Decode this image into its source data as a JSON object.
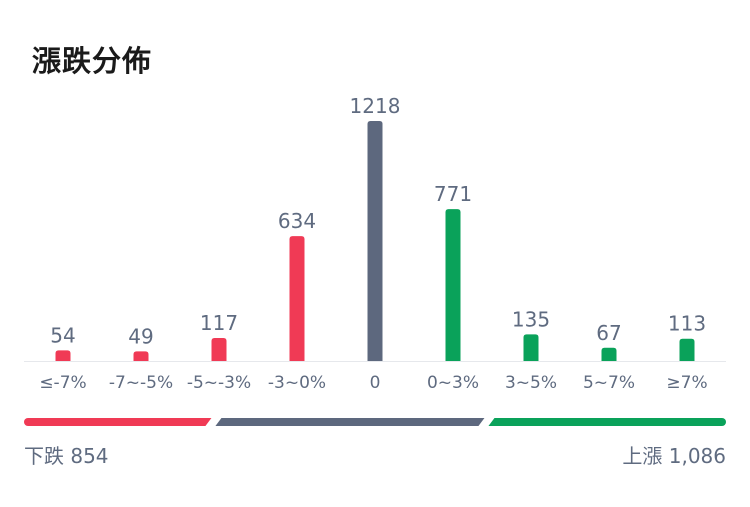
{
  "title": "漲跌分佈",
  "colors": {
    "down": "#f03a55",
    "flat": "#5d687e",
    "up": "#0aa25a"
  },
  "chart_data": {
    "type": "bar",
    "categories": [
      "≤-7%",
      "-7~-5%",
      "-5~-3%",
      "-3~0%",
      "0",
      "0~3%",
      "3~5%",
      "5~7%",
      "≥7%"
    ],
    "values": [
      54,
      49,
      117,
      634,
      1218,
      771,
      135,
      67,
      113
    ],
    "bar_colors": [
      "down",
      "down",
      "down",
      "down",
      "flat",
      "up",
      "up",
      "up",
      "up"
    ],
    "ylim": [
      0,
      1218
    ]
  },
  "summary": {
    "down_label": "下跌 854",
    "up_label": "上漲 1,086",
    "down_count": 854,
    "flat_count": 1218,
    "up_count": 1086
  }
}
